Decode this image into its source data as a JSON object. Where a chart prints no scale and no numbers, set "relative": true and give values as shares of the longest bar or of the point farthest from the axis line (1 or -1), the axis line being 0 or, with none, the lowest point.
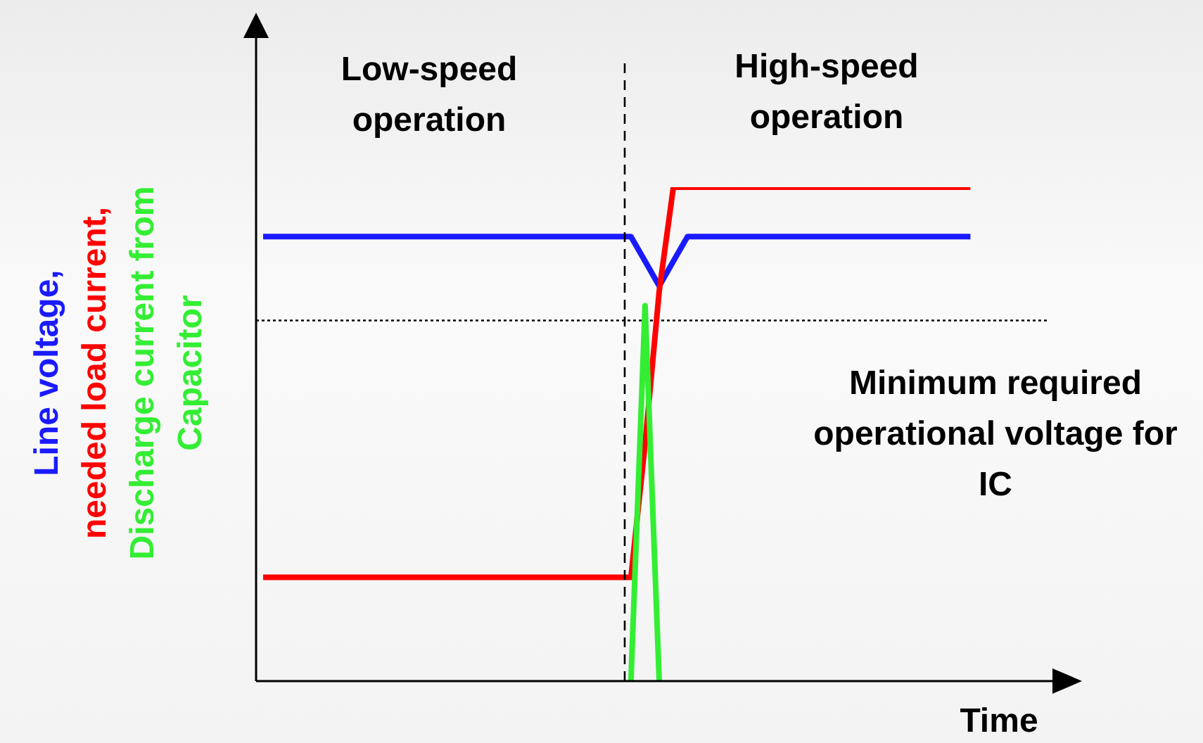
{
  "chart_data": {
    "type": "line",
    "relative": true,
    "xlabel": "Time",
    "categories": [
      null,
      null,
      null,
      null,
      null,
      null,
      null,
      null,
      null,
      null,
      null,
      null,
      null,
      null,
      null,
      null,
      null,
      null,
      null,
      null,
      null,
      null,
      null,
      null,
      null,
      null,
      null,
      null,
      null,
      null,
      null,
      null,
      null,
      null,
      null,
      null,
      null,
      null,
      null,
      null,
      null,
      null,
      null,
      null,
      null,
      null,
      null,
      null,
      null,
      null,
      null,
      null,
      null,
      null,
      null,
      null
    ],
    "series": [
      {
        "name": "Line voltage,",
        "color": "#1a1aff",
        "values": [
          0.9,
          0.9,
          0.9,
          0.9,
          0.9,
          0.9,
          0.9,
          0.9,
          0.9,
          0.9,
          0.9,
          0.9,
          0.9,
          0.9,
          0.9,
          0.9,
          0.9,
          0.9,
          0.9,
          0.9,
          0.9,
          0.9,
          0.9,
          0.9,
          0.9,
          0.9,
          0.9,
          0.85,
          0.8,
          0.85,
          0.9,
          0.9,
          0.9,
          0.9,
          0.9,
          0.9,
          0.9,
          0.9,
          0.9,
          0.9,
          0.9,
          0.9,
          0.9,
          0.9,
          0.9,
          0.9,
          0.9,
          0.9,
          0.9,
          0.9,
          0.9,
          null,
          null,
          null,
          null,
          null
        ]
      },
      {
        "name": "needed load current,",
        "color": "#ff0000",
        "values": [
          0.21,
          0.21,
          0.21,
          0.21,
          0.21,
          0.21,
          0.21,
          0.21,
          0.21,
          0.21,
          0.21,
          0.21,
          0.21,
          0.21,
          0.21,
          0.21,
          0.21,
          0.21,
          0.21,
          0.21,
          0.21,
          0.21,
          0.21,
          0.21,
          0.21,
          0.21,
          0.21,
          0.48,
          0.79,
          1,
          1,
          1,
          1,
          1,
          1,
          1,
          1,
          1,
          1,
          1,
          1,
          1,
          1,
          1,
          1,
          1,
          1,
          1,
          1,
          1,
          1,
          null,
          null,
          null,
          null,
          null
        ]
      },
      {
        "name": "Discharge current from Capacitor",
        "color": "#33ee33",
        "values": [
          null,
          null,
          null,
          null,
          null,
          null,
          null,
          null,
          null,
          null,
          null,
          null,
          null,
          null,
          null,
          null,
          null,
          null,
          null,
          null,
          null,
          null,
          null,
          null,
          null,
          null,
          0,
          0.76,
          0,
          null,
          null,
          null,
          null,
          null,
          null,
          null,
          null,
          null,
          null,
          null,
          null,
          null,
          null,
          null,
          null,
          null,
          null,
          null,
          null,
          null,
          null,
          null,
          null,
          null,
          null,
          null
        ]
      }
    ],
    "ref_lines": [
      {
        "axis": "y",
        "value": 0.73,
        "label": "Minimum required operational voltage for IC",
        "color": "#000000",
        "line_style": "dotted"
      }
    ],
    "annotations": [
      "Low-speed operation",
      "High-speed operation"
    ]
  }
}
